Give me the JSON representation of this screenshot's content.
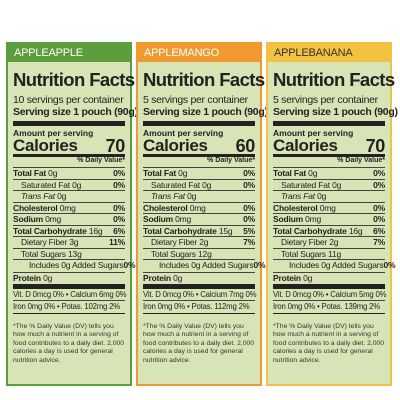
{
  "panels": [
    {
      "flavor": "APPLEAPPLE",
      "title": "Nutrition Facts",
      "servings": "10 servings per container",
      "serving_size": "Serving size 1 pouch (90g)",
      "amount_label": "Amount per serving",
      "calories_label": "Calories",
      "calories": 70,
      "dv_header": "% Daily Value*",
      "rows": [
        {
          "label": "Total Fat",
          "amount": "0g",
          "dv": "0%"
        },
        {
          "label": "Saturated Fat",
          "amount": "0g",
          "dv": "0%"
        },
        {
          "label": "Trans Fat",
          "amount": "0g"
        },
        {
          "label": "Cholesterol",
          "amount": "0mg",
          "dv": "0%"
        },
        {
          "label": "Sodium",
          "amount": "0mg",
          "dv": "0%"
        },
        {
          "label": "Total Carbohydrate",
          "amount": "16g",
          "dv": "6%"
        },
        {
          "label": "Dietary Fiber",
          "amount": "3g",
          "dv": "11%"
        },
        {
          "label": "Total Sugars",
          "amount": "13g"
        },
        {
          "label": "Includes 0g Added Sugars",
          "dv": "0%"
        }
      ],
      "protein": {
        "label": "Protein",
        "amount": "0g"
      },
      "minerals": [
        "Vit. D 0mcg 0% • Calcium 6mg 0%",
        "Iron 0mg 0% • Potas. 102mg 2%"
      ],
      "footnote": "*The % Daily Value (DV) tells you how much a nutrient in a serving of food contributes to a daily diet. 2,000 calories a day is used for general nutrition advice."
    },
    {
      "flavor": "APPLEMANGO",
      "title": "Nutrition Facts",
      "servings": "5 servings per container",
      "serving_size": "Serving size 1 pouch (90g)",
      "amount_label": "Amount per serving",
      "calories_label": "Calories",
      "calories": 60,
      "dv_header": "% Daily Value*",
      "rows": [
        {
          "label": "Total Fat",
          "amount": "0g",
          "dv": "0%"
        },
        {
          "label": "Saturated Fat",
          "amount": "0g",
          "dv": "0%"
        },
        {
          "label": "Trans Fat",
          "amount": "0g"
        },
        {
          "label": "Cholesterol",
          "amount": "0mg",
          "dv": "0%"
        },
        {
          "label": "Sodium",
          "amount": "0mg",
          "dv": "0%"
        },
        {
          "label": "Total Carbohydrate",
          "amount": "15g",
          "dv": "5%"
        },
        {
          "label": "Dietary Fiber",
          "amount": "2g",
          "dv": "7%"
        },
        {
          "label": "Total Sugars",
          "amount": "12g"
        },
        {
          "label": "Includes 0g Added Sugars",
          "dv": "0%"
        }
      ],
      "protein": {
        "label": "Protein",
        "amount": "0g"
      },
      "minerals": [
        "Vit. D 0mcg 0% • Calcium 7mg 0%",
        "Iron 0mg 0% • Potas. 112mg 2%"
      ],
      "footnote": "*The % Daily Value (DV) tells you how much a nutrient in a serving of food contributes to a daily diet. 2,000 calories a day is used for general nutrition advice."
    },
    {
      "flavor": "APPLEBANANA",
      "title": "Nutrition Facts",
      "servings": "5 servings per container",
      "serving_size": "Serving size 1 pouch (90g)",
      "amount_label": "Amount per serving",
      "calories_label": "Calories",
      "calories": 70,
      "dv_header": "% Daily Value*",
      "rows": [
        {
          "label": "Total Fat",
          "amount": "0g",
          "dv": "0%"
        },
        {
          "label": "Saturated Fat",
          "amount": "0g",
          "dv": "0%"
        },
        {
          "label": "Trans Fat",
          "amount": "0g"
        },
        {
          "label": "Cholesterol",
          "amount": "0mg",
          "dv": "0%"
        },
        {
          "label": "Sodium",
          "amount": "0mg",
          "dv": "0%"
        },
        {
          "label": "Total Carbohydrate",
          "amount": "16g",
          "dv": "6%"
        },
        {
          "label": "Dietary Fiber",
          "amount": "2g",
          "dv": "7%"
        },
        {
          "label": "Total Sugars",
          "amount": "11g"
        },
        {
          "label": "Includes 0g Added Sugars",
          "dv": "0%"
        }
      ],
      "protein": {
        "label": "Protein",
        "amount": "0g"
      },
      "minerals": [
        "Vit. D 0mcg 0% • Calcium 5mg 0%",
        "Iron 0mg 0% • Potas. 139mg 2%"
      ],
      "footnote": "*The % Daily Value (DV) tells you how much a nutrient in a serving of food contributes to a daily diet. 2,000 calories a day is used for general nutrition advice."
    }
  ]
}
